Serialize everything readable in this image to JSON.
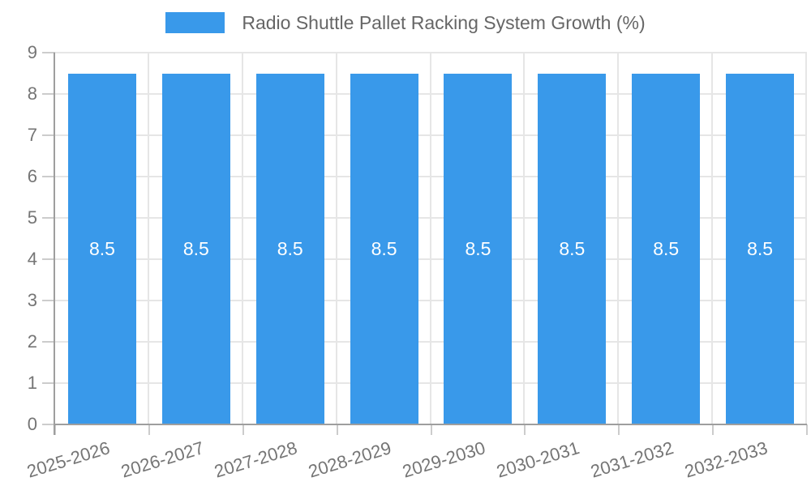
{
  "legend": {
    "label": "Radio Shuttle Pallet Racking System Growth (%)"
  },
  "chart_data": {
    "type": "bar",
    "title": "Radio Shuttle Pallet Racking System Growth (%)",
    "categories": [
      "2025-2026",
      "2026-2027",
      "2027-2028",
      "2028-2029",
      "2029-2030",
      "2030-2031",
      "2031-2032",
      "2032-2033"
    ],
    "series": [
      {
        "name": "Radio Shuttle Pallet Racking System Growth (%)",
        "values": [
          8.5,
          8.5,
          8.5,
          8.5,
          8.5,
          8.5,
          8.5,
          8.5
        ]
      }
    ],
    "bar_value_labels": [
      "8.5",
      "8.5",
      "8.5",
      "8.5",
      "8.5",
      "8.5",
      "8.5",
      "8.5"
    ],
    "xlabel": "",
    "ylabel": "",
    "ylim": [
      0,
      9
    ],
    "yticks": [
      0,
      1,
      2,
      3,
      4,
      5,
      6,
      7,
      8,
      9
    ],
    "grid": true,
    "legend_position": "top",
    "colors": {
      "bar": "#3999EA",
      "bar_label": "#FFFFFF",
      "grid": "#E6E6E6",
      "tick": "#CCCCCC",
      "axis": "#9E9E9E",
      "tick_label": "#757575",
      "legend_text": "#666666"
    }
  }
}
